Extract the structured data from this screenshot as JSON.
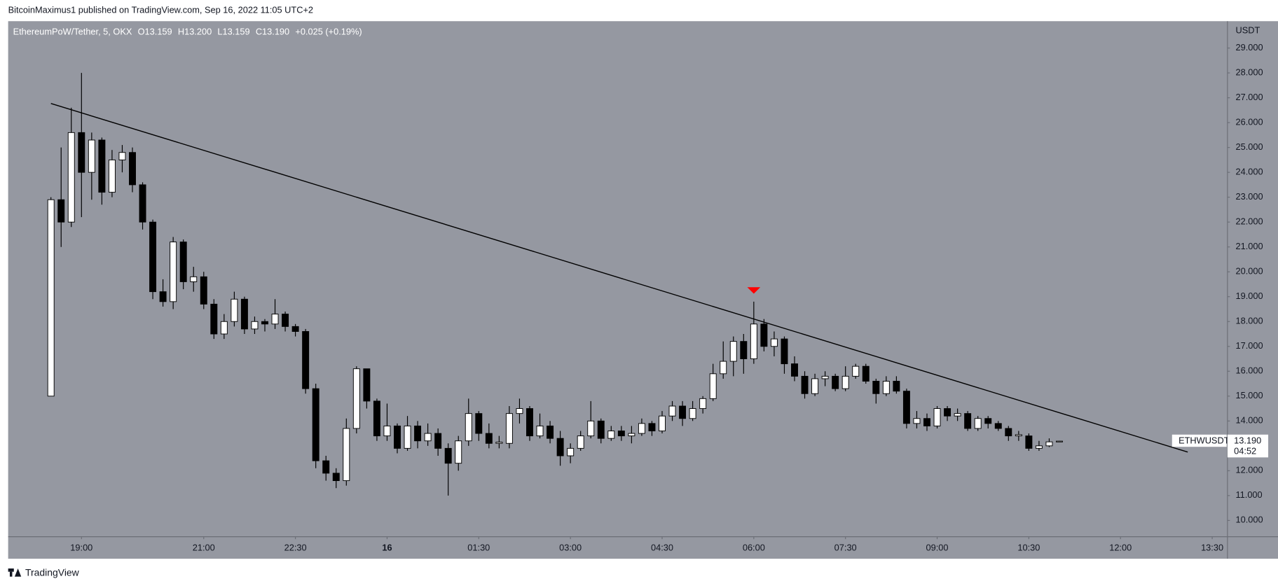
{
  "header": "BitcoinMaximus1 published on TradingView.com, Sep 16, 2022 11:05 UTC+2",
  "footer": "TradingView",
  "chart_data": {
    "type": "candlestick",
    "symbol": "EthereumPoW/Tether, 5, OKX",
    "ohlc_labels": [
      "O13.159",
      "H13.200",
      "L13.159",
      "C13.190",
      "+0.025 (+0.19%)"
    ],
    "y_axis_label": "USDT",
    "ticker": "ETHWUSDT",
    "last_price": {
      "value": 13.19,
      "label": "13.190"
    },
    "countdown": "04:52",
    "up_color": "#ffffff",
    "down_color": "#000000",
    "background": "#9598a1",
    "grid": false,
    "xlim": [
      "17:48",
      "13:45"
    ],
    "ylim": [
      9.345,
      30.08
    ],
    "yticks": [
      {
        "value": 10,
        "label": "10.000"
      },
      {
        "value": 11,
        "label": "11.000"
      },
      {
        "value": 12,
        "label": "12.000"
      },
      {
        "value": 13,
        "label": "13.000"
      },
      {
        "value": 14,
        "label": "14.000"
      },
      {
        "value": 15,
        "label": "15.000"
      },
      {
        "value": 16,
        "label": "16.000"
      },
      {
        "value": 17,
        "label": "17.000"
      },
      {
        "value": 18,
        "label": "18.000"
      },
      {
        "value": 19,
        "label": "19.000"
      },
      {
        "value": 20,
        "label": "20.000"
      },
      {
        "value": 21,
        "label": "21.000"
      },
      {
        "value": 22,
        "label": "22.000"
      },
      {
        "value": 23,
        "label": "23.000"
      },
      {
        "value": 24,
        "label": "24.000"
      },
      {
        "value": 25,
        "label": "25.000"
      },
      {
        "value": 26,
        "label": "26.000"
      },
      {
        "value": 27,
        "label": "27.000"
      },
      {
        "value": 28,
        "label": "28.000"
      },
      {
        "value": 29,
        "label": "29.000"
      }
    ],
    "xticks": [
      "19:00",
      "21:00",
      "22:30",
      "16",
      "01:30",
      "03:00",
      "04:30",
      "06:00",
      "07:30",
      "09:00",
      "10:30",
      "12:00",
      "13:30"
    ],
    "trendline": {
      "x": [
        "18:30",
        "13:06"
      ],
      "values": [
        26.77,
        12.75
      ],
      "color": "#000000"
    },
    "marker": {
      "x": "06:00",
      "value": 19.25,
      "color": "#ff0000"
    },
    "candles": [
      {
        "x": "18:30",
        "open": 15.0,
        "high": 23.0,
        "low": 15.0,
        "close": 22.9
      },
      {
        "x": "18:40",
        "open": 22.9,
        "high": 25.0,
        "low": 21.0,
        "close": 22.0
      },
      {
        "x": "18:50",
        "open": 22.0,
        "high": 26.6,
        "low": 21.8,
        "close": 25.6
      },
      {
        "x": "19:00",
        "open": 25.6,
        "high": 28.0,
        "low": 22.2,
        "close": 24.0
      },
      {
        "x": "19:10",
        "open": 24.0,
        "high": 25.6,
        "low": 22.9,
        "close": 25.3
      },
      {
        "x": "19:20",
        "open": 25.3,
        "high": 25.4,
        "low": 22.7,
        "close": 23.2
      },
      {
        "x": "19:30",
        "open": 23.2,
        "high": 24.9,
        "low": 23.0,
        "close": 24.5
      },
      {
        "x": "19:40",
        "open": 24.5,
        "high": 25.1,
        "low": 24.0,
        "close": 24.8
      },
      {
        "x": "19:50",
        "open": 24.8,
        "high": 25.0,
        "low": 23.2,
        "close": 23.5
      },
      {
        "x": "20:00",
        "open": 23.5,
        "high": 23.6,
        "low": 21.7,
        "close": 22.0
      },
      {
        "x": "20:10",
        "open": 22.0,
        "high": 22.1,
        "low": 18.9,
        "close": 19.2
      },
      {
        "x": "20:20",
        "open": 19.2,
        "high": 19.7,
        "low": 18.6,
        "close": 18.8
      },
      {
        "x": "20:30",
        "open": 18.8,
        "high": 21.4,
        "low": 18.5,
        "close": 21.2
      },
      {
        "x": "20:40",
        "open": 21.2,
        "high": 21.3,
        "low": 19.3,
        "close": 19.6
      },
      {
        "x": "20:50",
        "open": 19.6,
        "high": 20.2,
        "low": 19.2,
        "close": 19.8
      },
      {
        "x": "21:00",
        "open": 19.8,
        "high": 20.0,
        "low": 18.5,
        "close": 18.7
      },
      {
        "x": "21:10",
        "open": 18.7,
        "high": 18.9,
        "low": 17.3,
        "close": 17.5
      },
      {
        "x": "21:20",
        "open": 17.5,
        "high": 18.3,
        "low": 17.3,
        "close": 18.0
      },
      {
        "x": "21:30",
        "open": 18.0,
        "high": 19.2,
        "low": 17.8,
        "close": 18.9
      },
      {
        "x": "21:40",
        "open": 18.9,
        "high": 19.0,
        "low": 17.5,
        "close": 17.7
      },
      {
        "x": "21:50",
        "open": 17.7,
        "high": 18.2,
        "low": 17.5,
        "close": 18.0
      },
      {
        "x": "22:00",
        "open": 18.0,
        "high": 18.1,
        "low": 17.6,
        "close": 17.9
      },
      {
        "x": "22:10",
        "open": 17.9,
        "high": 18.9,
        "low": 17.7,
        "close": 18.3
      },
      {
        "x": "22:20",
        "open": 18.3,
        "high": 18.4,
        "low": 17.6,
        "close": 17.8
      },
      {
        "x": "22:30",
        "open": 17.8,
        "high": 17.9,
        "low": 17.4,
        "close": 17.6
      },
      {
        "x": "22:40",
        "open": 17.6,
        "high": 17.7,
        "low": 15.1,
        "close": 15.3
      },
      {
        "x": "22:50",
        "open": 15.3,
        "high": 15.5,
        "low": 12.1,
        "close": 12.4
      },
      {
        "x": "23:00",
        "open": 12.4,
        "high": 12.6,
        "low": 11.6,
        "close": 11.9
      },
      {
        "x": "23:10",
        "open": 11.9,
        "high": 12.1,
        "low": 11.3,
        "close": 11.6
      },
      {
        "x": "23:20",
        "open": 11.6,
        "high": 14.1,
        "low": 11.4,
        "close": 13.7
      },
      {
        "x": "23:30",
        "open": 13.7,
        "high": 16.2,
        "low": 13.5,
        "close": 16.1
      },
      {
        "x": "23:40",
        "open": 16.1,
        "high": 16.1,
        "low": 14.5,
        "close": 14.8
      },
      {
        "x": "23:50",
        "open": 14.8,
        "high": 14.9,
        "low": 13.2,
        "close": 13.4
      },
      {
        "x": "00:00",
        "open": 13.4,
        "high": 14.7,
        "low": 13.2,
        "close": 13.8
      },
      {
        "x": "00:10",
        "open": 13.8,
        "high": 13.9,
        "low": 12.7,
        "close": 12.9
      },
      {
        "x": "00:20",
        "open": 12.9,
        "high": 14.2,
        "low": 12.8,
        "close": 13.8
      },
      {
        "x": "00:30",
        "open": 13.8,
        "high": 14.0,
        "low": 12.9,
        "close": 13.2
      },
      {
        "x": "00:40",
        "open": 13.2,
        "high": 13.9,
        "low": 13.0,
        "close": 13.5
      },
      {
        "x": "00:50",
        "open": 13.5,
        "high": 13.7,
        "low": 12.6,
        "close": 12.9
      },
      {
        "x": "01:00",
        "open": 12.9,
        "high": 13.1,
        "low": 11.0,
        "close": 12.3
      },
      {
        "x": "01:10",
        "open": 12.3,
        "high": 13.4,
        "low": 12.0,
        "close": 13.2
      },
      {
        "x": "01:20",
        "open": 13.2,
        "high": 14.9,
        "low": 13.0,
        "close": 14.3
      },
      {
        "x": "01:30",
        "open": 14.3,
        "high": 14.4,
        "low": 13.2,
        "close": 13.5
      },
      {
        "x": "01:40",
        "open": 13.5,
        "high": 13.9,
        "low": 12.9,
        "close": 13.1
      },
      {
        "x": "01:50",
        "open": 13.1,
        "high": 13.4,
        "low": 12.9,
        "close": 13.15
      },
      {
        "x": "02:00",
        "open": 13.1,
        "high": 14.6,
        "low": 12.9,
        "close": 14.3
      },
      {
        "x": "02:10",
        "open": 14.3,
        "high": 14.9,
        "low": 13.9,
        "close": 14.5
      },
      {
        "x": "02:20",
        "open": 14.5,
        "high": 14.6,
        "low": 13.2,
        "close": 13.4
      },
      {
        "x": "02:30",
        "open": 13.4,
        "high": 14.3,
        "low": 13.3,
        "close": 13.8
      },
      {
        "x": "02:40",
        "open": 13.8,
        "high": 14.0,
        "low": 13.1,
        "close": 13.3
      },
      {
        "x": "02:50",
        "open": 13.3,
        "high": 13.6,
        "low": 12.2,
        "close": 12.6
      },
      {
        "x": "03:00",
        "open": 12.6,
        "high": 13.1,
        "low": 12.3,
        "close": 12.9
      },
      {
        "x": "03:10",
        "open": 12.9,
        "high": 13.6,
        "low": 12.8,
        "close": 13.4
      },
      {
        "x": "03:20",
        "open": 13.4,
        "high": 14.8,
        "low": 13.3,
        "close": 14.0
      },
      {
        "x": "03:30",
        "open": 14.0,
        "high": 14.1,
        "low": 13.1,
        "close": 13.3
      },
      {
        "x": "03:40",
        "open": 13.3,
        "high": 13.8,
        "low": 13.2,
        "close": 13.6
      },
      {
        "x": "03:50",
        "open": 13.6,
        "high": 13.8,
        "low": 13.2,
        "close": 13.4
      },
      {
        "x": "04:00",
        "open": 13.4,
        "high": 13.8,
        "low": 13.1,
        "close": 13.5
      },
      {
        "x": "04:10",
        "open": 13.5,
        "high": 14.1,
        "low": 13.4,
        "close": 13.9
      },
      {
        "x": "04:20",
        "open": 13.9,
        "high": 14.0,
        "low": 13.4,
        "close": 13.6
      },
      {
        "x": "04:30",
        "open": 13.6,
        "high": 14.4,
        "low": 13.5,
        "close": 14.2
      },
      {
        "x": "04:40",
        "open": 14.2,
        "high": 14.8,
        "low": 14.0,
        "close": 14.6
      },
      {
        "x": "04:50",
        "open": 14.6,
        "high": 14.8,
        "low": 13.8,
        "close": 14.1
      },
      {
        "x": "05:00",
        "open": 14.1,
        "high": 14.8,
        "low": 14.0,
        "close": 14.5
      },
      {
        "x": "05:10",
        "open": 14.5,
        "high": 15.0,
        "low": 14.3,
        "close": 14.9
      },
      {
        "x": "05:20",
        "open": 14.9,
        "high": 16.3,
        "low": 14.8,
        "close": 15.9
      },
      {
        "x": "05:30",
        "open": 15.9,
        "high": 17.2,
        "low": 15.7,
        "close": 16.4
      },
      {
        "x": "05:40",
        "open": 16.4,
        "high": 17.4,
        "low": 15.8,
        "close": 17.2
      },
      {
        "x": "05:50",
        "open": 17.2,
        "high": 17.5,
        "low": 15.9,
        "close": 16.5
      },
      {
        "x": "06:00",
        "open": 16.5,
        "high": 18.8,
        "low": 16.3,
        "close": 17.9
      },
      {
        "x": "06:10",
        "open": 17.9,
        "high": 18.1,
        "low": 16.8,
        "close": 17.0
      },
      {
        "x": "06:20",
        "open": 17.0,
        "high": 17.6,
        "low": 16.6,
        "close": 17.3
      },
      {
        "x": "06:30",
        "open": 17.3,
        "high": 17.4,
        "low": 15.9,
        "close": 16.3
      },
      {
        "x": "06:40",
        "open": 16.3,
        "high": 16.6,
        "low": 15.6,
        "close": 15.8
      },
      {
        "x": "06:50",
        "open": 15.8,
        "high": 16.0,
        "low": 14.9,
        "close": 15.1
      },
      {
        "x": "07:00",
        "open": 15.1,
        "high": 15.9,
        "low": 15.0,
        "close": 15.7
      },
      {
        "x": "07:10",
        "open": 15.7,
        "high": 16.0,
        "low": 15.4,
        "close": 15.8
      },
      {
        "x": "07:20",
        "open": 15.8,
        "high": 15.9,
        "low": 15.2,
        "close": 15.3
      },
      {
        "x": "07:30",
        "open": 15.3,
        "high": 16.2,
        "low": 15.2,
        "close": 15.8
      },
      {
        "x": "07:40",
        "open": 15.8,
        "high": 16.3,
        "low": 15.7,
        "close": 16.2
      },
      {
        "x": "07:50",
        "open": 16.2,
        "high": 16.3,
        "low": 15.5,
        "close": 15.6
      },
      {
        "x": "08:00",
        "open": 15.6,
        "high": 15.7,
        "low": 14.7,
        "close": 15.1
      },
      {
        "x": "08:10",
        "open": 15.1,
        "high": 15.8,
        "low": 15.0,
        "close": 15.6
      },
      {
        "x": "08:20",
        "open": 15.6,
        "high": 15.8,
        "low": 15.1,
        "close": 15.2
      },
      {
        "x": "08:30",
        "open": 15.2,
        "high": 15.3,
        "low": 13.7,
        "close": 13.9
      },
      {
        "x": "08:40",
        "open": 13.9,
        "high": 14.4,
        "low": 13.7,
        "close": 14.1
      },
      {
        "x": "08:50",
        "open": 14.1,
        "high": 14.3,
        "low": 13.6,
        "close": 13.8
      },
      {
        "x": "09:00",
        "open": 13.8,
        "high": 14.6,
        "low": 13.7,
        "close": 14.5
      },
      {
        "x": "09:10",
        "open": 14.5,
        "high": 14.6,
        "low": 14.0,
        "close": 14.2
      },
      {
        "x": "09:20",
        "open": 14.2,
        "high": 14.5,
        "low": 14.0,
        "close": 14.3
      },
      {
        "x": "09:30",
        "open": 14.3,
        "high": 14.4,
        "low": 13.6,
        "close": 13.7
      },
      {
        "x": "09:40",
        "open": 13.7,
        "high": 14.2,
        "low": 13.6,
        "close": 14.1
      },
      {
        "x": "09:50",
        "open": 14.1,
        "high": 14.2,
        "low": 13.7,
        "close": 13.9
      },
      {
        "x": "10:00",
        "open": 13.9,
        "high": 14.0,
        "low": 13.6,
        "close": 13.7
      },
      {
        "x": "10:10",
        "open": 13.7,
        "high": 13.8,
        "low": 13.2,
        "close": 13.4
      },
      {
        "x": "10:20",
        "open": 13.4,
        "high": 13.6,
        "low": 13.2,
        "close": 13.45
      },
      {
        "x": "10:30",
        "open": 13.4,
        "high": 13.5,
        "low": 12.8,
        "close": 12.9
      },
      {
        "x": "10:40",
        "open": 12.9,
        "high": 13.2,
        "low": 12.8,
        "close": 13.0
      },
      {
        "x": "10:50",
        "open": 13.0,
        "high": 13.3,
        "low": 12.95,
        "close": 13.16
      },
      {
        "x": "11:00",
        "open": 13.159,
        "high": 13.2,
        "low": 13.159,
        "close": 13.19
      }
    ]
  }
}
